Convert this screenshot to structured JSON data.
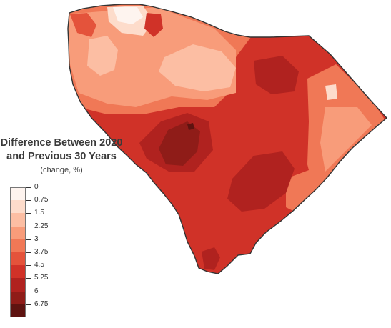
{
  "map": {
    "title_line1": "Difference Between 2020",
    "title_line2": "and Previous 30 Years",
    "subtitle": "(change, %)"
  },
  "legend": {
    "ticks": [
      "0",
      "0.75",
      "1.5",
      "2.25",
      "3",
      "3.75",
      "4.5",
      "5.25",
      "6",
      "6.75"
    ],
    "bins": [
      {
        "color": "#fef4ef"
      },
      {
        "color": "#fddccb"
      },
      {
        "color": "#fcbea3"
      },
      {
        "color": "#f89c7a"
      },
      {
        "color": "#f07856"
      },
      {
        "color": "#e4533b"
      },
      {
        "color": "#d03228"
      },
      {
        "color": "#b0221f"
      },
      {
        "color": "#8f1c18"
      },
      {
        "color": "#5e1310"
      }
    ]
  }
}
